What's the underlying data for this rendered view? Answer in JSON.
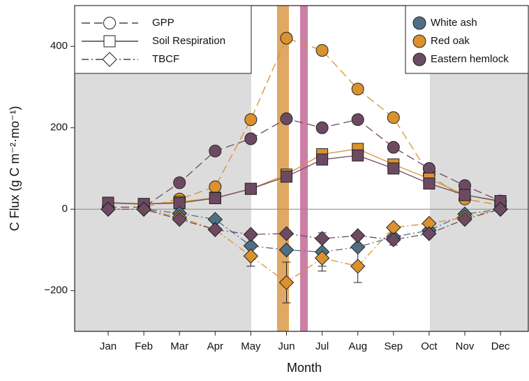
{
  "chart_data": {
    "type": "line",
    "x_label": "Month",
    "y_label": "C Flux (g C m⁻²·mo⁻¹)",
    "categories": [
      "Jan",
      "Feb",
      "Mar",
      "Apr",
      "May",
      "Jun",
      "Jul",
      "Aug",
      "Sep",
      "Oct",
      "Nov",
      "Dec"
    ],
    "ylim": [
      -300,
      500
    ],
    "yticks": [
      {
        "value": -200,
        "label": "−200"
      },
      0,
      200,
      400
    ],
    "species": [
      {
        "name": "White ash",
        "color": "#4f6f85"
      },
      {
        "name": "Red oak",
        "color": "#d9922f"
      },
      {
        "name": "Eastern hemlock",
        "color": "#6e4a62"
      }
    ],
    "measures": [
      {
        "name": "GPP",
        "marker": "circle",
        "dash": "12,6"
      },
      {
        "name": "Soil Respiration",
        "marker": "square",
        "dash": "none"
      },
      {
        "name": "TBCF",
        "marker": "diamond",
        "dash": "10,4,2,4"
      }
    ],
    "series": [
      {
        "species": 1,
        "measure": 0,
        "values": [
          5,
          5,
          25,
          55,
          220,
          420,
          390,
          295,
          225,
          85,
          25,
          10
        ]
      },
      {
        "species": 2,
        "measure": 0,
        "values": [
          5,
          5,
          65,
          143,
          173,
          222,
          200,
          220,
          152,
          100,
          58,
          20
        ]
      },
      {
        "species": 1,
        "measure": 1,
        "values": [
          15,
          12,
          18,
          28,
          50,
          85,
          135,
          148,
          110,
          75,
          35,
          18
        ]
      },
      {
        "species": 2,
        "measure": 1,
        "values": [
          16,
          13,
          15,
          27,
          50,
          80,
          122,
          132,
          100,
          63,
          35,
          20
        ]
      },
      {
        "species": 0,
        "measure": 2,
        "values": [
          0,
          0,
          -10,
          -25,
          -90,
          -100,
          -105,
          -93,
          -68,
          -52,
          -12,
          0
        ],
        "errors": [
          null,
          null,
          null,
          null,
          null,
          null,
          47,
          null,
          20,
          null,
          null,
          null
        ]
      },
      {
        "species": 1,
        "measure": 2,
        "values": [
          0,
          0,
          -20,
          -50,
          -115,
          -180,
          -120,
          -140,
          -45,
          -35,
          -20,
          0
        ],
        "errors": [
          null,
          null,
          null,
          null,
          25,
          50,
          20,
          40,
          null,
          null,
          null,
          null
        ]
      },
      {
        "species": 2,
        "measure": 2,
        "values": [
          0,
          0,
          -25,
          -50,
          -62,
          -60,
          -72,
          -65,
          -75,
          -60,
          -25,
          0
        ]
      }
    ]
  }
}
